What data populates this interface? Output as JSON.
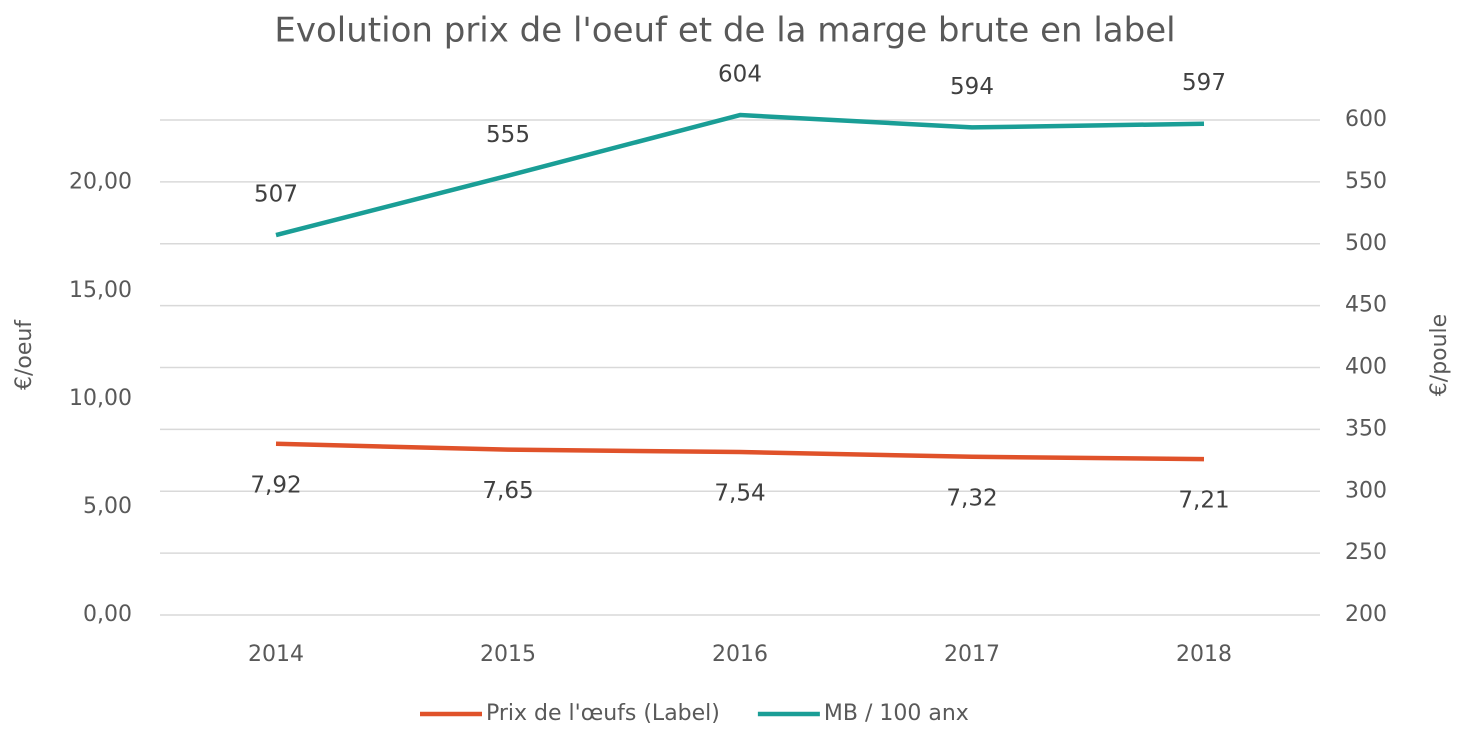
{
  "chart_data": {
    "type": "line",
    "title": "Evolution prix de l'oeuf et de la marge brute en label",
    "categories": [
      "2014",
      "2015",
      "2016",
      "2017",
      "2018"
    ],
    "ylabel": "€/oeuf",
    "y2label": "€/poule",
    "ylim": [
      0,
      22.9
    ],
    "yticks": [
      {
        "value": 0,
        "label": "0,00"
      },
      {
        "value": 5,
        "label": "5,00"
      },
      {
        "value": 10,
        "label": "10,00"
      },
      {
        "value": 15,
        "label": "15,00"
      },
      {
        "value": 20,
        "label": "20,00"
      }
    ],
    "y2lim": [
      200,
      600
    ],
    "y2ticks": [
      200,
      250,
      300,
      350,
      400,
      450,
      500,
      550,
      600
    ],
    "grid": true,
    "legend": "bottom",
    "series": [
      {
        "name": "Prix de l'œufs (Label)",
        "color": "#e0522a",
        "values": [
          7.92,
          7.65,
          7.54,
          7.32,
          7.21
        ],
        "value_labels": [
          "7,92",
          "7,65",
          "7,54",
          "7,32",
          "7,21"
        ]
      },
      {
        "name": "MB / 100 anx",
        "color": "#1a9e96",
        "axis": "y2",
        "values": [
          507,
          555,
          604,
          594,
          597
        ]
      }
    ]
  }
}
